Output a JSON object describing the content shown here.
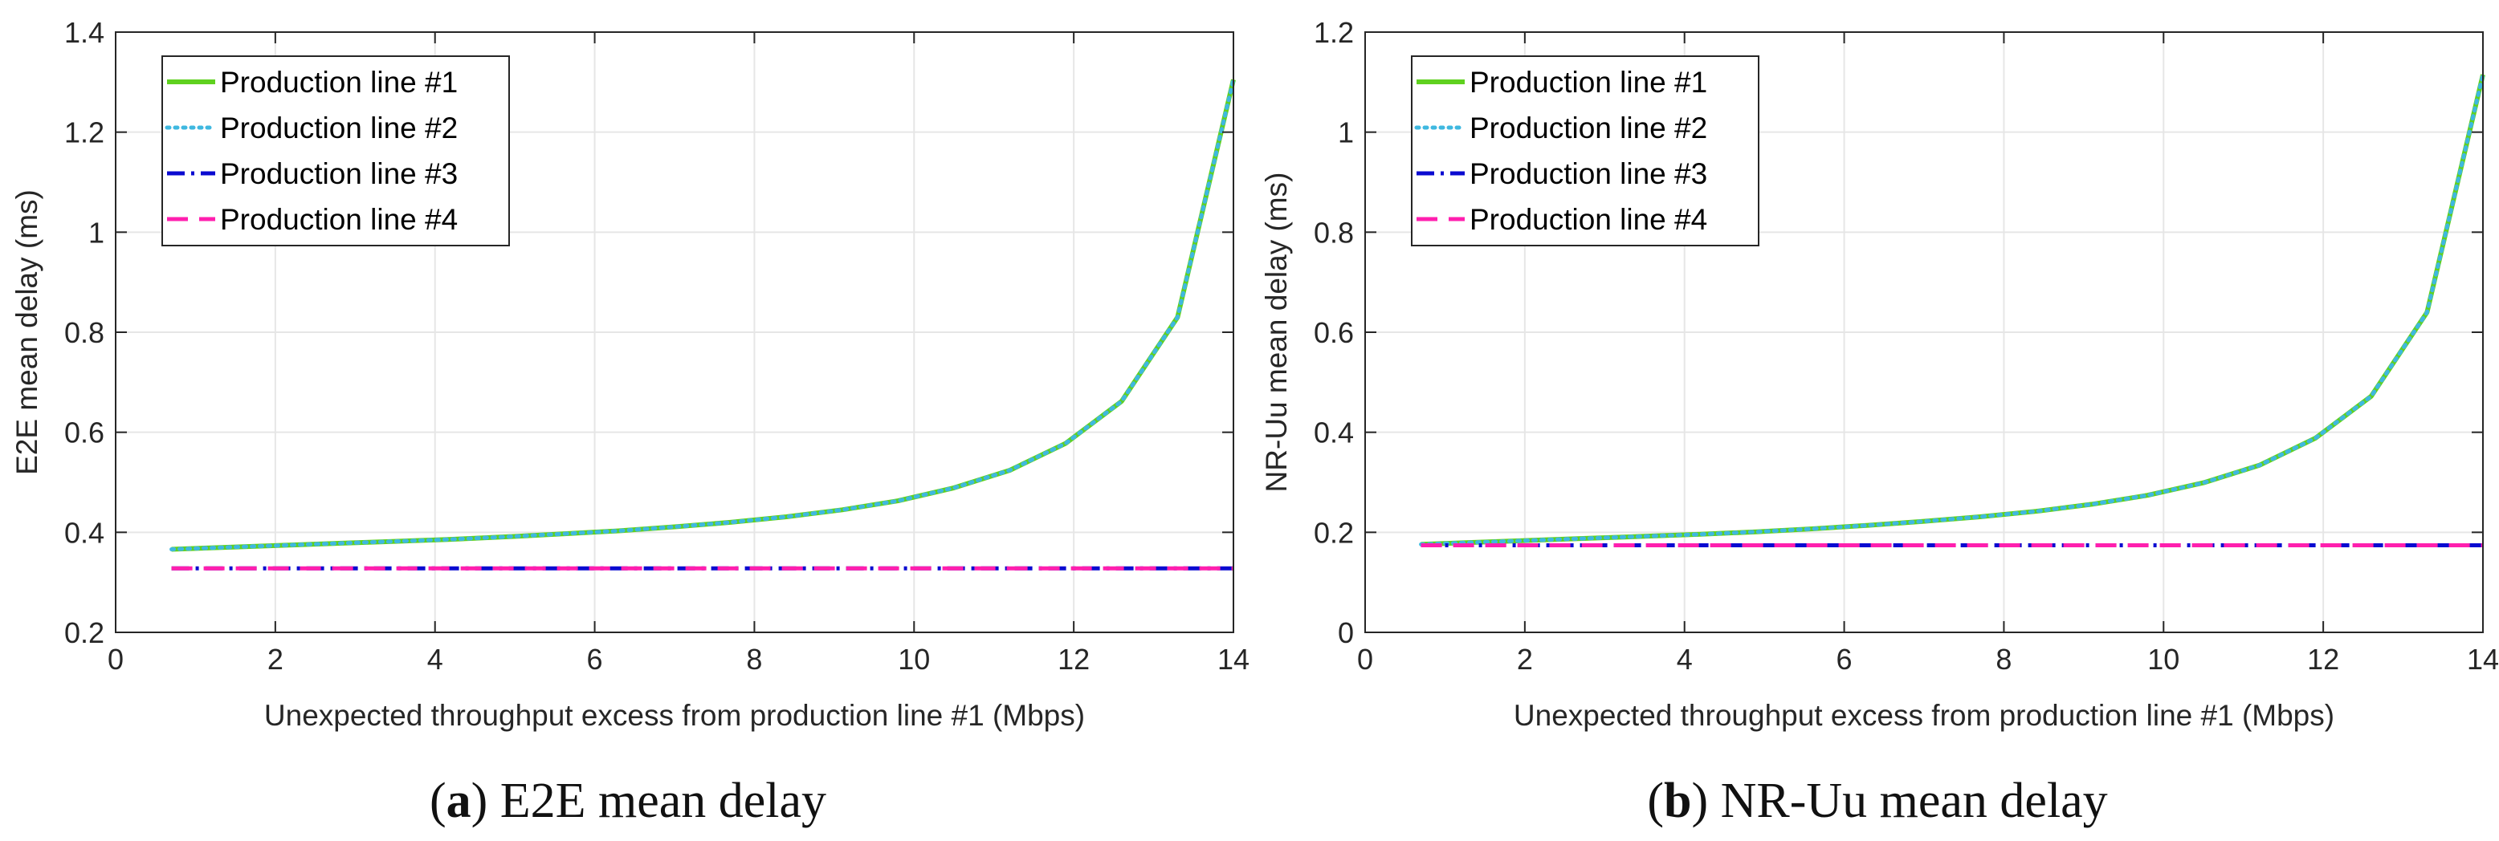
{
  "chart_data": [
    {
      "type": "line",
      "caption_label": "a",
      "caption_text": "E2E mean delay",
      "xlabel": "Unexpected throughput excess from production line #1 (Mbps)",
      "ylabel": "E2E mean delay (ms)",
      "xlim": [
        0,
        14
      ],
      "ylim": [
        0.2,
        1.4
      ],
      "xticks": [
        0,
        2,
        4,
        6,
        8,
        10,
        12,
        14
      ],
      "yticks": [
        0.2,
        0.4,
        0.6,
        0.8,
        1,
        1.2,
        1.4
      ],
      "grid": true,
      "legend_position": "top-left",
      "x": [
        0.7,
        1.4,
        2.1,
        2.8,
        3.5,
        4.2,
        4.9,
        5.6,
        6.3,
        7.0,
        7.7,
        8.4,
        9.1,
        9.8,
        10.5,
        11.2,
        11.9,
        12.6,
        13.3,
        14.0
      ],
      "series": [
        {
          "name": "Production line #1",
          "style": "solid",
          "color": "#5fd11f",
          "values": [
            0.366,
            0.37,
            0.374,
            0.378,
            0.382,
            0.386,
            0.391,
            0.397,
            0.403,
            0.411,
            0.42,
            0.431,
            0.445,
            0.463,
            0.489,
            0.524,
            0.578,
            0.662,
            0.83,
            1.305
          ]
        },
        {
          "name": "Production line #2",
          "style": "dotted",
          "color": "#3fb8e0",
          "values": [
            0.366,
            0.37,
            0.374,
            0.378,
            0.382,
            0.386,
            0.391,
            0.397,
            0.403,
            0.411,
            0.42,
            0.431,
            0.445,
            0.463,
            0.489,
            0.524,
            0.578,
            0.662,
            0.83,
            1.305
          ]
        },
        {
          "name": "Production line #3",
          "style": "dashdot",
          "color": "#0a0ad0",
          "values": [
            0.328,
            0.328,
            0.328,
            0.328,
            0.328,
            0.328,
            0.328,
            0.328,
            0.328,
            0.328,
            0.328,
            0.328,
            0.328,
            0.328,
            0.328,
            0.328,
            0.328,
            0.328,
            0.328,
            0.328
          ]
        },
        {
          "name": "Production line #4",
          "style": "dashed",
          "color": "#ff1fae",
          "values": [
            0.328,
            0.328,
            0.328,
            0.328,
            0.328,
            0.328,
            0.328,
            0.328,
            0.328,
            0.328,
            0.328,
            0.328,
            0.328,
            0.328,
            0.328,
            0.328,
            0.328,
            0.328,
            0.328,
            0.328
          ]
        }
      ]
    },
    {
      "type": "line",
      "caption_label": "b",
      "caption_text": "NR-Uu mean delay",
      "xlabel": "Unexpected throughput excess from production line #1 (Mbps)",
      "ylabel": "NR-Uu mean delay (ms)",
      "xlim": [
        0,
        14
      ],
      "ylim": [
        0,
        1.2
      ],
      "xticks": [
        0,
        2,
        4,
        6,
        8,
        10,
        12,
        14
      ],
      "yticks": [
        0,
        0.2,
        0.4,
        0.6,
        0.8,
        1,
        1.2
      ],
      "grid": true,
      "legend_position": "top-left",
      "x": [
        0.7,
        1.4,
        2.1,
        2.8,
        3.5,
        4.2,
        4.9,
        5.6,
        6.3,
        7.0,
        7.7,
        8.4,
        9.1,
        9.8,
        10.5,
        11.2,
        11.9,
        12.6,
        13.3,
        14.0
      ],
      "series": [
        {
          "name": "Production line #1",
          "style": "solid",
          "color": "#5fd11f",
          "values": [
            0.176,
            0.18,
            0.184,
            0.188,
            0.192,
            0.196,
            0.201,
            0.207,
            0.214,
            0.222,
            0.231,
            0.242,
            0.256,
            0.274,
            0.299,
            0.334,
            0.388,
            0.472,
            0.64,
            1.115
          ]
        },
        {
          "name": "Production line #2",
          "style": "dotted",
          "color": "#3fb8e0",
          "values": [
            0.176,
            0.18,
            0.184,
            0.188,
            0.192,
            0.196,
            0.201,
            0.207,
            0.214,
            0.222,
            0.231,
            0.242,
            0.256,
            0.274,
            0.299,
            0.334,
            0.388,
            0.472,
            0.64,
            1.115
          ]
        },
        {
          "name": "Production line #3",
          "style": "dashdot",
          "color": "#0a0ad0",
          "values": [
            0.174,
            0.174,
            0.174,
            0.174,
            0.174,
            0.174,
            0.174,
            0.174,
            0.174,
            0.174,
            0.174,
            0.174,
            0.174,
            0.174,
            0.174,
            0.174,
            0.174,
            0.174,
            0.174,
            0.174
          ]
        },
        {
          "name": "Production line #4",
          "style": "dashed",
          "color": "#ff1fae",
          "values": [
            0.174,
            0.174,
            0.174,
            0.174,
            0.174,
            0.174,
            0.174,
            0.174,
            0.174,
            0.174,
            0.174,
            0.174,
            0.174,
            0.174,
            0.174,
            0.174,
            0.174,
            0.174,
            0.174,
            0.174
          ]
        }
      ]
    }
  ]
}
